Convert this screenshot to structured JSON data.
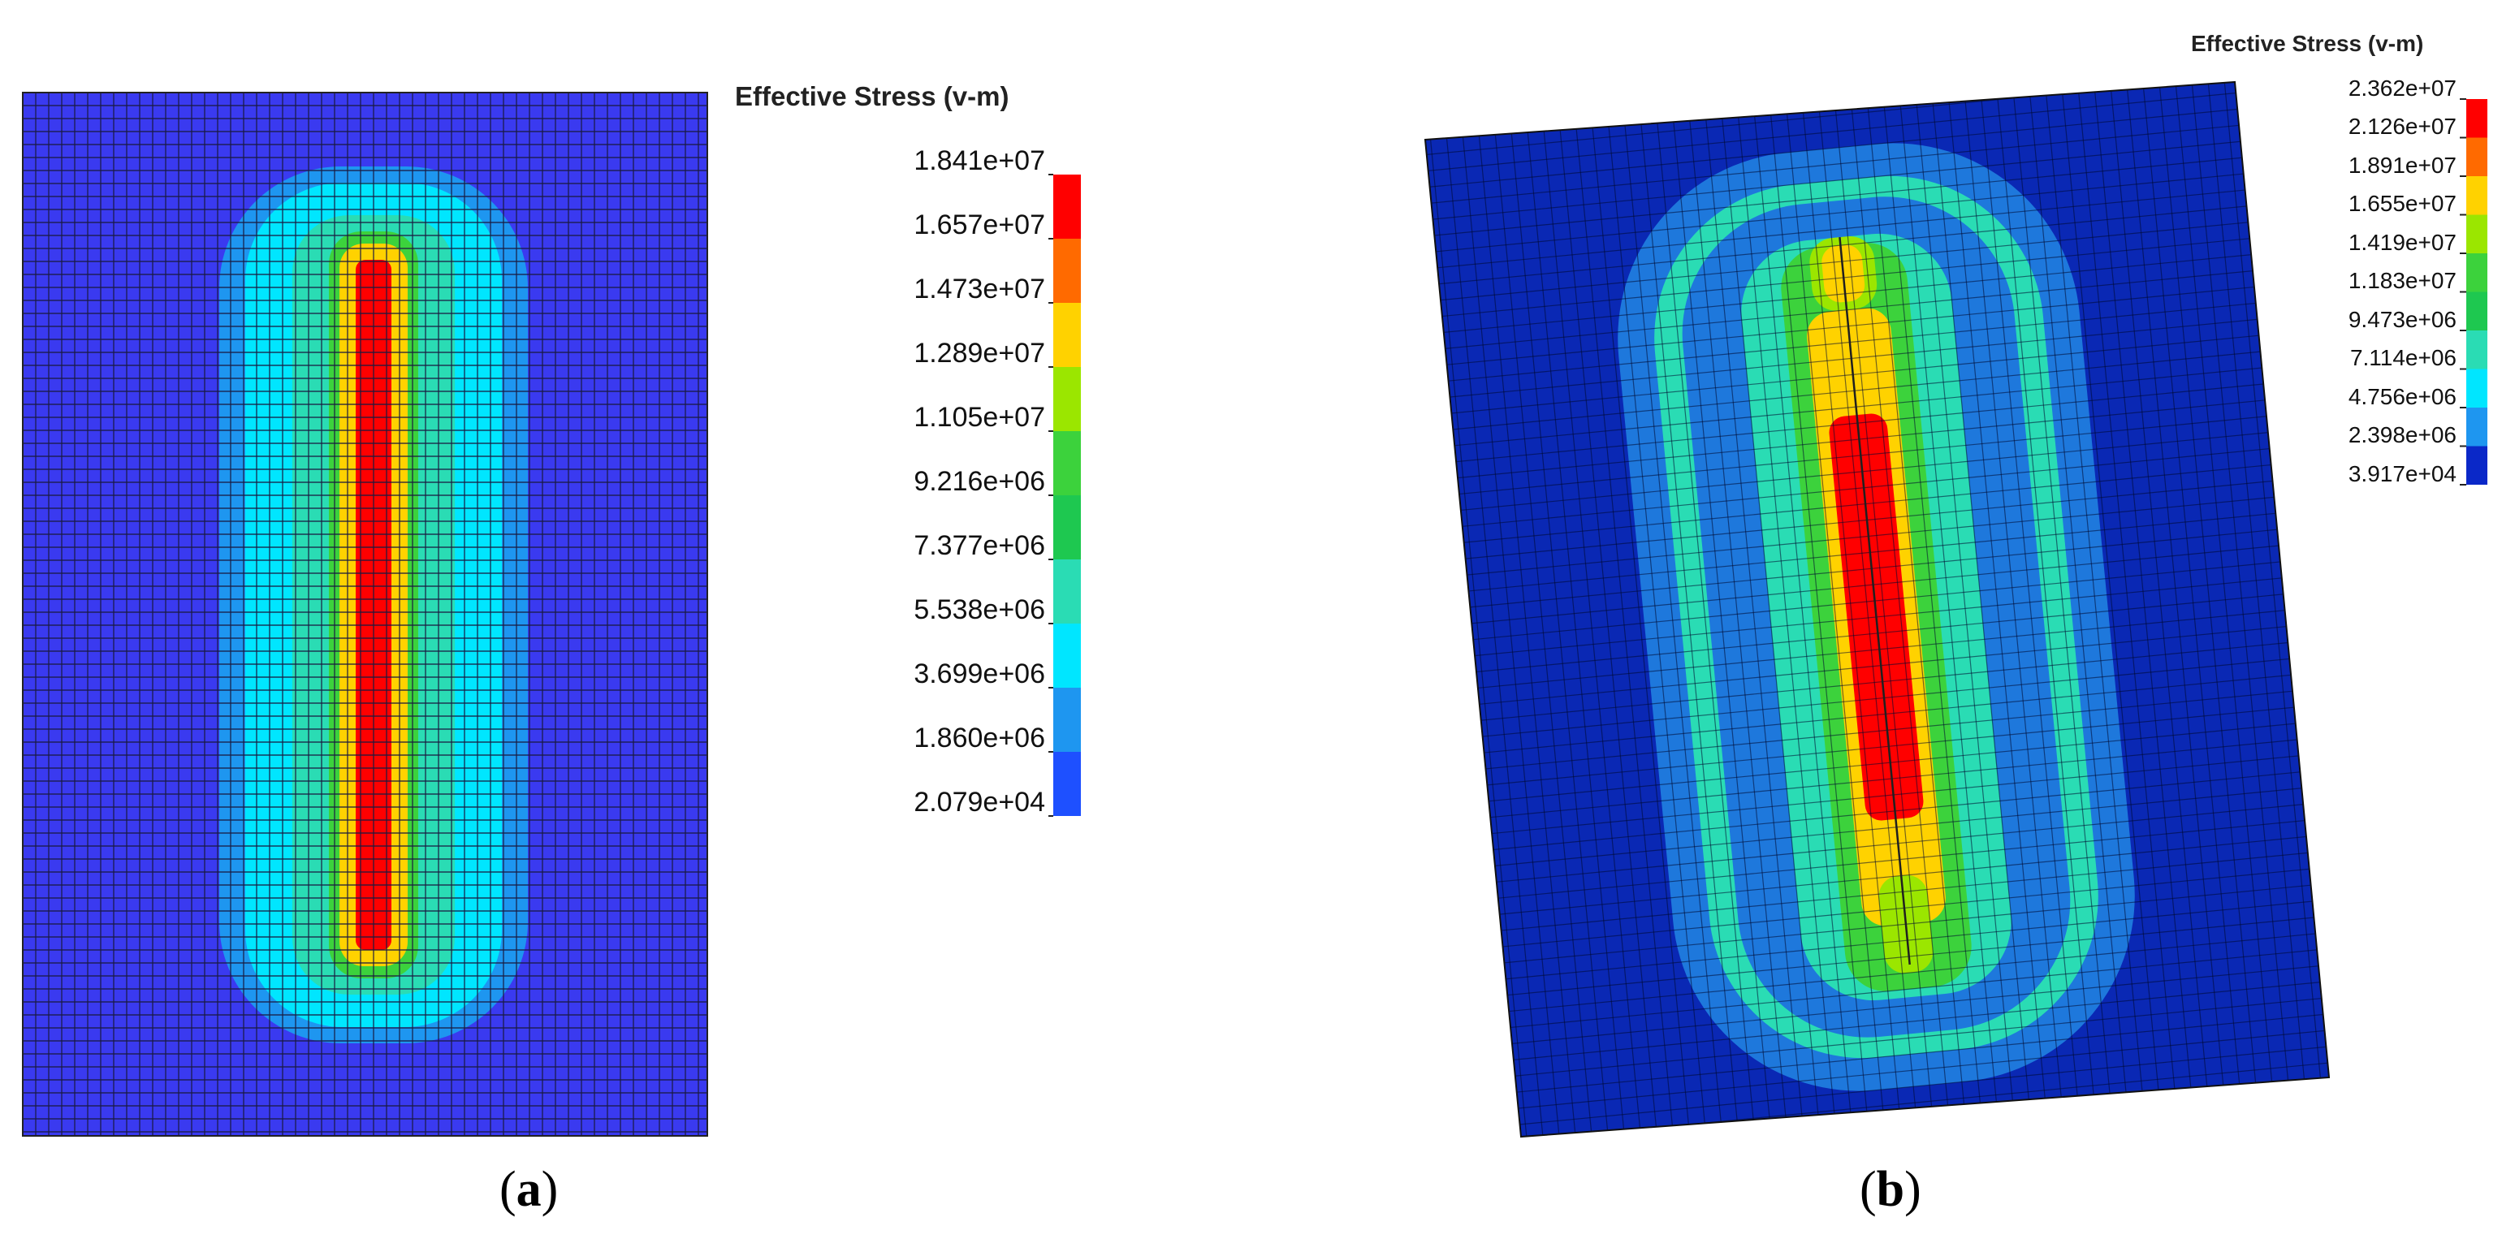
{
  "panels": [
    {
      "id": "a",
      "caption_letter": "a",
      "legend_title": "Effective Stress (v-m)",
      "legend_ticks": [
        "1.841e+07",
        "1.657e+07",
        "1.473e+07",
        "1.289e+07",
        "1.105e+07",
        "9.216e+06",
        "7.377e+06",
        "5.538e+06",
        "3.699e+06",
        "1.860e+06",
        "2.079e+04"
      ],
      "legend_colors": [
        "#ff0000",
        "#ff6a00",
        "#ffd200",
        "#9be600",
        "#3cd23c",
        "#1ec850",
        "#2adcb4",
        "#00e6ff",
        "#1e96f0",
        "#1e50ff"
      ]
    },
    {
      "id": "b",
      "caption_letter": "b",
      "legend_title": "Effective Stress (v-m)",
      "legend_ticks": [
        "2.362e+07",
        "2.126e+07",
        "1.891e+07",
        "1.655e+07",
        "1.419e+07",
        "1.183e+07",
        "9.473e+06",
        "7.114e+06",
        "4.756e+06",
        "2.398e+06",
        "3.917e+04"
      ],
      "legend_colors": [
        "#ff0000",
        "#ff6a00",
        "#ffd200",
        "#9be600",
        "#3cd23c",
        "#1ec850",
        "#2adcb4",
        "#00e6ff",
        "#1e96f0",
        "#0a28c8"
      ]
    }
  ],
  "colors": {
    "background_blue_a": "#3a3af0",
    "background_blue_b": "#0a28b4",
    "grid_line": "#1a1a40"
  }
}
